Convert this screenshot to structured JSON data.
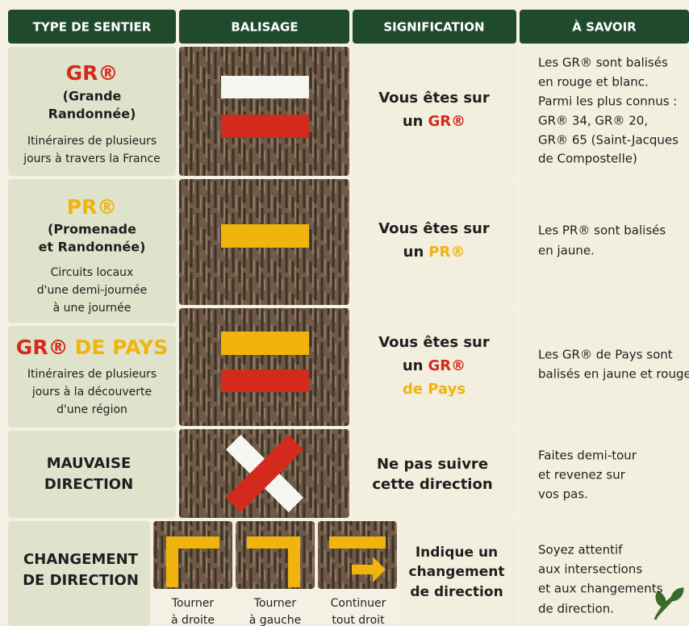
{
  "header": {
    "columns": [
      "TYPE DE SENTIER",
      "BALISAGE",
      "SIGNIFICATION",
      "À SAVOIR"
    ]
  },
  "rows": [
    {
      "type": {
        "title": "GR®",
        "subtitle": [
          "(Grande",
          "Randonnée)"
        ],
        "description": [
          "Itinéraires de plusieurs",
          "jours à travers la France"
        ]
      },
      "meaning": {
        "lines": [
          "Vous êtes sur",
          "un"
        ],
        "highlight": "GR®"
      },
      "info": [
        "Les GR® sont balisés",
        "en rouge et blanc.",
        "Parmi les plus connus :",
        "GR® 34, GR® 20,",
        "GR® 65 (Saint-Jacques",
        "de Compostelle)"
      ]
    },
    {
      "type": {
        "title": "PR®",
        "subtitle": [
          "(Promenade",
          "et Randonnée)"
        ],
        "description": [
          "Circuits locaux",
          "d'une demi-journée",
          "à une journée"
        ]
      },
      "meaning": {
        "lines": [
          "Vous êtes sur",
          "un"
        ],
        "highlight": "PR®"
      },
      "info": [
        "Les PR® sont balisés",
        "en jaune."
      ]
    },
    {
      "type": {
        "title": [
          "GR®",
          "DE PAYS"
        ],
        "description": [
          "Itinéraires de plusieurs",
          "jours à la découverte",
          "d'une région"
        ]
      },
      "meaning": {
        "lines": [
          "Vous êtes sur",
          "un"
        ],
        "highlight": [
          "GR®",
          "de Pays"
        ]
      },
      "info": [
        "Les GR® de Pays sont",
        "balisés en jaune et rouge."
      ]
    },
    {
      "type": {
        "title": [
          "MAUVAISE",
          "DIRECTION"
        ]
      },
      "meaning": {
        "lines": [
          "Ne pas suivre",
          "cette direction"
        ]
      },
      "info": [
        "Faites demi-tour",
        "et revenez sur",
        "vos pas."
      ]
    },
    {
      "type": {
        "title": [
          "CHANGEMENT",
          "DE DIRECTION"
        ]
      },
      "markers": [
        [
          "Tourner",
          "à droite"
        ],
        [
          "Tourner",
          "à gauche"
        ],
        [
          "Continuer",
          "tout droit"
        ]
      ],
      "meaning": {
        "lines": [
          "Indique un",
          "changement",
          "de direction"
        ]
      },
      "info": [
        "Soyez attentif",
        "aux intersections",
        "et aux changements",
        "de direction."
      ]
    }
  ]
}
